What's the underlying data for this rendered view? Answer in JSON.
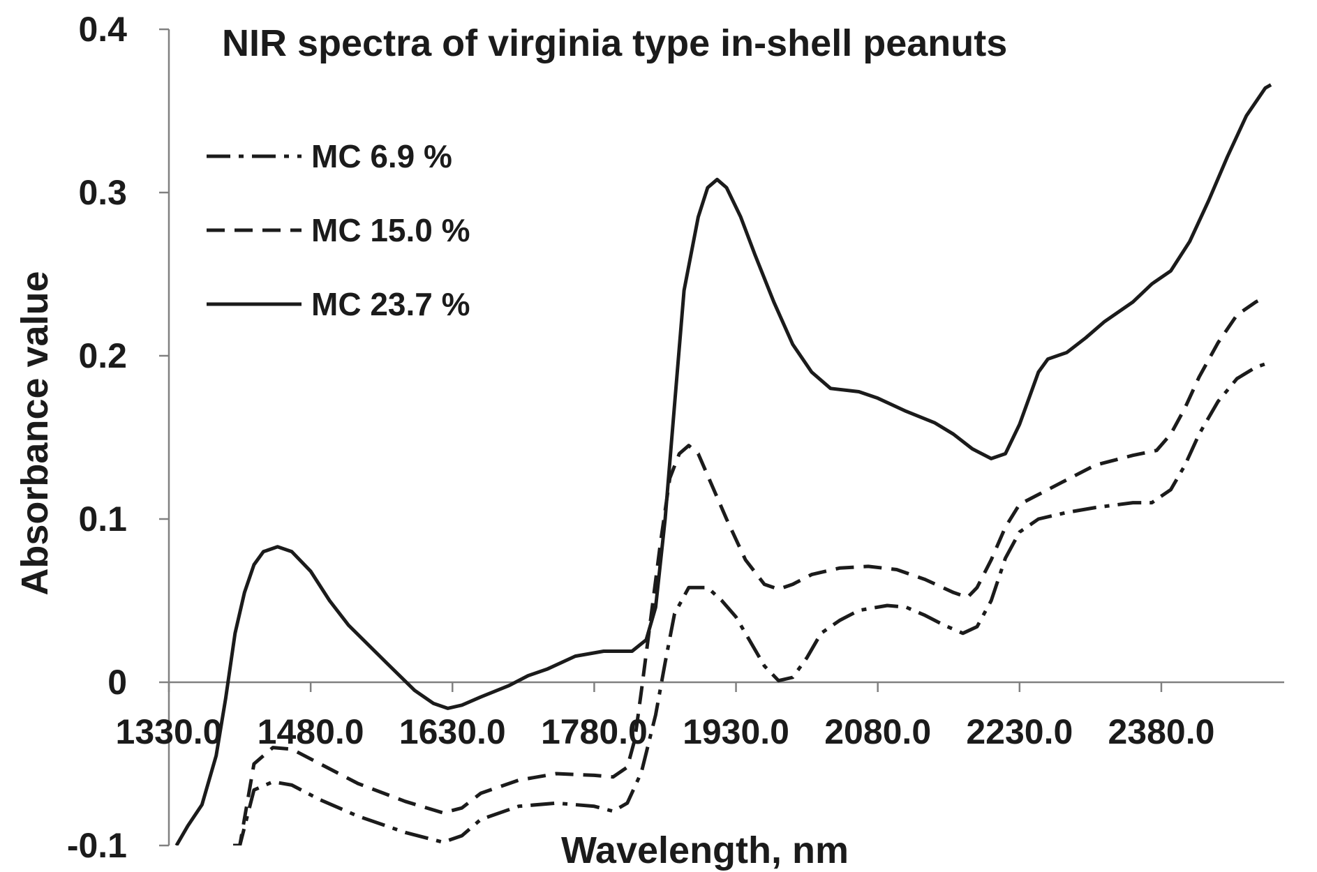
{
  "chart_data": {
    "type": "line",
    "title": "NIR spectra of virginia type in-shell peanuts",
    "xlabel": "Wavelength, nm",
    "ylabel": "Absorbance value",
    "xlim": [
      1330,
      2510
    ],
    "ylim": [
      -0.1,
      0.4
    ],
    "x_ticks": [
      "1330.0",
      "1480.0",
      "1630.0",
      "1780.0",
      "1930.0",
      "2080.0",
      "2230.0",
      "2380.0"
    ],
    "y_ticks": [
      "-0.1",
      "0",
      "0.1",
      "0.2",
      "0.3",
      "0.4"
    ],
    "legend_position": "top-left",
    "grid": false,
    "series": [
      {
        "name": "MC 6.9 %",
        "style": "dash-dot",
        "points": [
          [
            1398,
            -0.1
          ],
          [
            1405,
            -0.1
          ],
          [
            1420,
            -0.066
          ],
          [
            1440,
            -0.061
          ],
          [
            1460,
            -0.063
          ],
          [
            1490,
            -0.072
          ],
          [
            1530,
            -0.082
          ],
          [
            1580,
            -0.092
          ],
          [
            1620,
            -0.098
          ],
          [
            1640,
            -0.094
          ],
          [
            1660,
            -0.084
          ],
          [
            1700,
            -0.076
          ],
          [
            1740,
            -0.074
          ],
          [
            1780,
            -0.076
          ],
          [
            1800,
            -0.079
          ],
          [
            1815,
            -0.074
          ],
          [
            1830,
            -0.055
          ],
          [
            1845,
            -0.02
          ],
          [
            1855,
            0.012
          ],
          [
            1865,
            0.042
          ],
          [
            1880,
            0.058
          ],
          [
            1900,
            0.058
          ],
          [
            1915,
            0.05
          ],
          [
            1930,
            0.04
          ],
          [
            1945,
            0.025
          ],
          [
            1960,
            0.01
          ],
          [
            1975,
            0.001
          ],
          [
            1990,
            0.003
          ],
          [
            2005,
            0.015
          ],
          [
            2020,
            0.03
          ],
          [
            2040,
            0.038
          ],
          [
            2060,
            0.044
          ],
          [
            2090,
            0.047
          ],
          [
            2110,
            0.046
          ],
          [
            2130,
            0.041
          ],
          [
            2150,
            0.035
          ],
          [
            2170,
            0.03
          ],
          [
            2185,
            0.034
          ],
          [
            2200,
            0.05
          ],
          [
            2215,
            0.076
          ],
          [
            2230,
            0.092
          ],
          [
            2250,
            0.1
          ],
          [
            2280,
            0.104
          ],
          [
            2310,
            0.107
          ],
          [
            2350,
            0.11
          ],
          [
            2370,
            0.11
          ],
          [
            2390,
            0.118
          ],
          [
            2405,
            0.133
          ],
          [
            2420,
            0.152
          ],
          [
            2440,
            0.172
          ],
          [
            2460,
            0.186
          ],
          [
            2480,
            0.193
          ],
          [
            2490,
            0.195
          ]
        ]
      },
      {
        "name": "MC 15.0 %",
        "style": "dashed",
        "points": [
          [
            1398,
            -0.1
          ],
          [
            1405,
            -0.1
          ],
          [
            1420,
            -0.05
          ],
          [
            1440,
            -0.04
          ],
          [
            1460,
            -0.041
          ],
          [
            1490,
            -0.05
          ],
          [
            1530,
            -0.062
          ],
          [
            1580,
            -0.073
          ],
          [
            1620,
            -0.08
          ],
          [
            1640,
            -0.077
          ],
          [
            1660,
            -0.068
          ],
          [
            1700,
            -0.06
          ],
          [
            1740,
            -0.056
          ],
          [
            1780,
            -0.057
          ],
          [
            1800,
            -0.058
          ],
          [
            1815,
            -0.052
          ],
          [
            1823,
            -0.035
          ],
          [
            1830,
            -0.005
          ],
          [
            1840,
            0.04
          ],
          [
            1850,
            0.085
          ],
          [
            1860,
            0.125
          ],
          [
            1870,
            0.14
          ],
          [
            1880,
            0.145
          ],
          [
            1890,
            0.14
          ],
          [
            1905,
            0.12
          ],
          [
            1920,
            0.1
          ],
          [
            1940,
            0.075
          ],
          [
            1960,
            0.06
          ],
          [
            1975,
            0.057
          ],
          [
            1990,
            0.06
          ],
          [
            2010,
            0.066
          ],
          [
            2040,
            0.07
          ],
          [
            2070,
            0.071
          ],
          [
            2100,
            0.069
          ],
          [
            2130,
            0.063
          ],
          [
            2160,
            0.055
          ],
          [
            2175,
            0.052
          ],
          [
            2185,
            0.058
          ],
          [
            2200,
            0.075
          ],
          [
            2215,
            0.095
          ],
          [
            2230,
            0.109
          ],
          [
            2250,
            0.115
          ],
          [
            2280,
            0.124
          ],
          [
            2310,
            0.133
          ],
          [
            2350,
            0.139
          ],
          [
            2375,
            0.142
          ],
          [
            2390,
            0.152
          ],
          [
            2405,
            0.168
          ],
          [
            2420,
            0.187
          ],
          [
            2440,
            0.208
          ],
          [
            2460,
            0.225
          ],
          [
            2480,
            0.233
          ],
          [
            2490,
            0.236
          ]
        ]
      },
      {
        "name": "MC 23.7 %",
        "style": "solid",
        "points": [
          [
            1338,
            -0.1
          ],
          [
            1350,
            -0.088
          ],
          [
            1365,
            -0.075
          ],
          [
            1380,
            -0.045
          ],
          [
            1390,
            -0.01
          ],
          [
            1400,
            0.03
          ],
          [
            1410,
            0.055
          ],
          [
            1420,
            0.072
          ],
          [
            1430,
            0.08
          ],
          [
            1445,
            0.083
          ],
          [
            1460,
            0.08
          ],
          [
            1480,
            0.068
          ],
          [
            1500,
            0.05
          ],
          [
            1520,
            0.035
          ],
          [
            1560,
            0.012
          ],
          [
            1590,
            -0.005
          ],
          [
            1610,
            -0.013
          ],
          [
            1625,
            -0.016
          ],
          [
            1640,
            -0.014
          ],
          [
            1660,
            -0.009
          ],
          [
            1690,
            -0.002
          ],
          [
            1710,
            0.004
          ],
          [
            1730,
            0.008
          ],
          [
            1760,
            0.016
          ],
          [
            1790,
            0.019
          ],
          [
            1820,
            0.019
          ],
          [
            1835,
            0.026
          ],
          [
            1845,
            0.046
          ],
          [
            1855,
            0.1
          ],
          [
            1865,
            0.17
          ],
          [
            1875,
            0.24
          ],
          [
            1890,
            0.285
          ],
          [
            1900,
            0.303
          ],
          [
            1910,
            0.308
          ],
          [
            1920,
            0.303
          ],
          [
            1935,
            0.285
          ],
          [
            1950,
            0.262
          ],
          [
            1970,
            0.233
          ],
          [
            1990,
            0.207
          ],
          [
            2010,
            0.19
          ],
          [
            2030,
            0.18
          ],
          [
            2060,
            0.178
          ],
          [
            2080,
            0.174
          ],
          [
            2110,
            0.166
          ],
          [
            2140,
            0.159
          ],
          [
            2160,
            0.152
          ],
          [
            2180,
            0.143
          ],
          [
            2200,
            0.137
          ],
          [
            2215,
            0.14
          ],
          [
            2230,
            0.158
          ],
          [
            2250,
            0.19
          ],
          [
            2260,
            0.198
          ],
          [
            2280,
            0.202
          ],
          [
            2300,
            0.211
          ],
          [
            2320,
            0.221
          ],
          [
            2350,
            0.233
          ],
          [
            2370,
            0.244
          ],
          [
            2390,
            0.252
          ],
          [
            2410,
            0.27
          ],
          [
            2430,
            0.295
          ],
          [
            2450,
            0.322
          ],
          [
            2470,
            0.347
          ],
          [
            2490,
            0.364
          ],
          [
            2496,
            0.366
          ]
        ]
      }
    ]
  }
}
